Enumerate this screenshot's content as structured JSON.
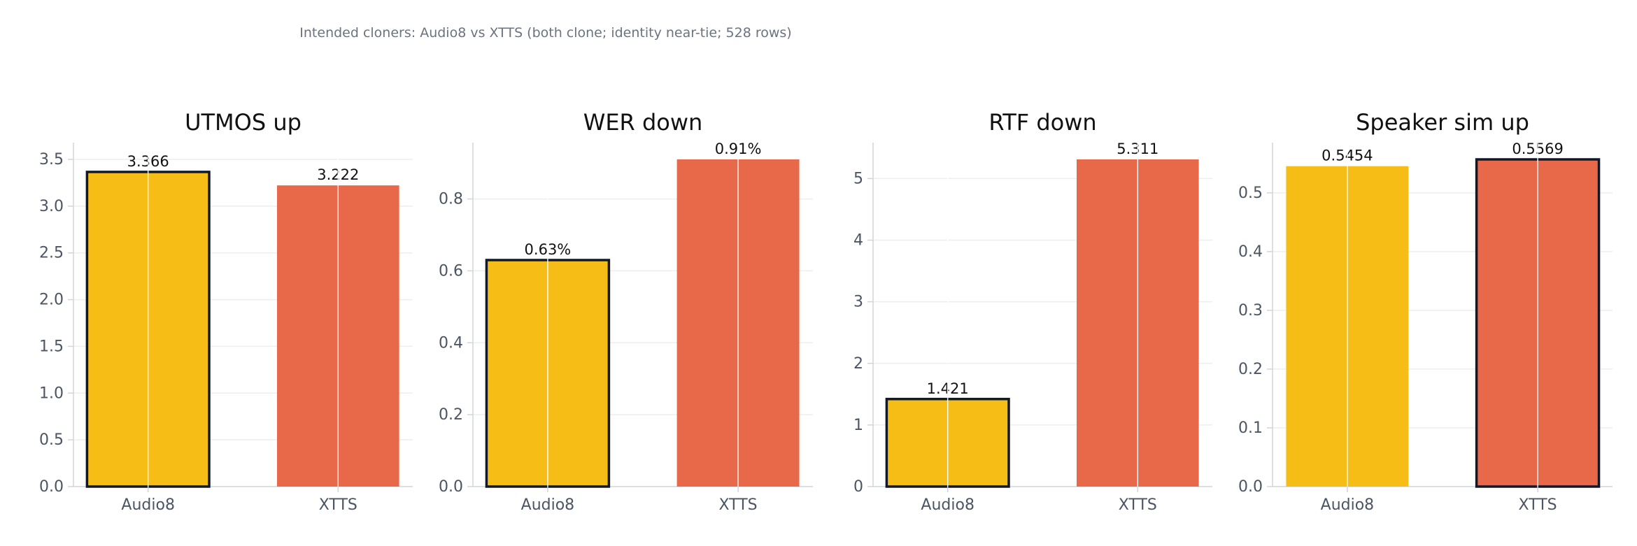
{
  "suptitle": "Intended cloners: Audio8 vs XTTS (both clone; identity near-tie; 528 rows)",
  "colors": {
    "audio8": "#f5bd16",
    "xtts": "#e8684a",
    "best_border": "#111827",
    "grid": "#eeeeee",
    "axis": "#d1d5db",
    "tick_text": "#4b5563",
    "title_text": "#111111"
  },
  "chart_data": [
    {
      "type": "bar",
      "title": "UTMOS up",
      "categories": [
        "Audio8",
        "XTTS"
      ],
      "values": [
        3.366,
        3.222
      ],
      "value_labels": [
        "3.366",
        "3.222"
      ],
      "highlight": [
        true,
        false
      ],
      "ylim": [
        0,
        3.5
      ],
      "yticks": [
        0,
        0.5,
        1.0,
        1.5,
        2.0,
        2.5,
        3.0,
        3.5
      ],
      "ytick_labels": [
        "0.0",
        "0.5",
        "1.0",
        "1.5",
        "2.0",
        "2.5",
        "3.0",
        "3.5"
      ],
      "grid": true
    },
    {
      "type": "bar",
      "title": "WER down",
      "categories": [
        "Audio8",
        "XTTS"
      ],
      "values": [
        0.63,
        0.91
      ],
      "value_labels": [
        "0.63%",
        "0.91%"
      ],
      "highlight": [
        true,
        false
      ],
      "ylim": [
        0,
        0.91
      ],
      "yticks": [
        0,
        0.2,
        0.4,
        0.6,
        0.8
      ],
      "ytick_labels": [
        "0.0",
        "0.2",
        "0.4",
        "0.6",
        "0.8"
      ],
      "grid": true
    },
    {
      "type": "bar",
      "title": "RTF down",
      "categories": [
        "Audio8",
        "XTTS"
      ],
      "values": [
        1.421,
        5.311
      ],
      "value_labels": [
        "1.421",
        "5.311"
      ],
      "highlight": [
        true,
        false
      ],
      "ylim": [
        0,
        5.311
      ],
      "yticks": [
        0,
        1,
        2,
        3,
        4,
        5
      ],
      "ytick_labels": [
        "0",
        "1",
        "2",
        "3",
        "4",
        "5"
      ],
      "grid": true
    },
    {
      "type": "bar",
      "title": "Speaker sim up",
      "categories": [
        "Audio8",
        "XTTS"
      ],
      "values": [
        0.5454,
        0.5569
      ],
      "value_labels": [
        "0.5454",
        "0.5569"
      ],
      "highlight": [
        false,
        true
      ],
      "ylim": [
        0,
        0.5569
      ],
      "yticks": [
        0,
        0.1,
        0.2,
        0.3,
        0.4,
        0.5
      ],
      "ytick_labels": [
        "0.0",
        "0.1",
        "0.2",
        "0.3",
        "0.4",
        "0.5"
      ],
      "grid": true
    }
  ]
}
